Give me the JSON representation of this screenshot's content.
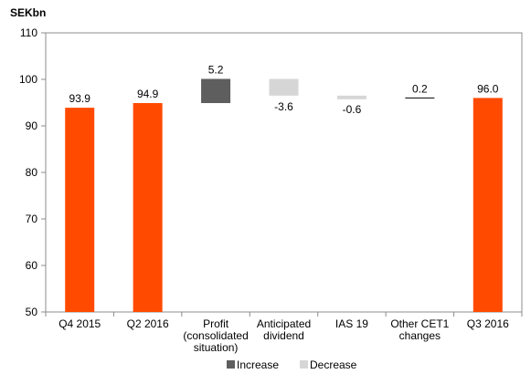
{
  "chart_data": {
    "type": "bar",
    "subtype": "waterfall",
    "unit_label": "SEKbn",
    "categories": [
      "Q4 2015",
      "Q2 2016",
      "Profit (consolidated situation)",
      "Anticipated dividend",
      "IAS 19",
      "Other CET1 changes",
      "Q3 2016"
    ],
    "category_lines": [
      [
        "Q4 2015"
      ],
      [
        "Q2 2016"
      ],
      [
        "Profit",
        "(consolidated",
        "situation)"
      ],
      [
        "Anticipated",
        "dividend"
      ],
      [
        "IAS 19"
      ],
      [
        "Other CET1",
        "changes"
      ],
      [
        "Q3 2016"
      ]
    ],
    "bars": [
      {
        "kind": "total",
        "start": 50,
        "end": 93.9,
        "label": "93.9"
      },
      {
        "kind": "total",
        "start": 50,
        "end": 94.9,
        "label": "94.9"
      },
      {
        "kind": "increase",
        "start": 94.9,
        "end": 100.1,
        "label": "5.2"
      },
      {
        "kind": "decrease",
        "start": 100.1,
        "end": 96.5,
        "label": "-3.6"
      },
      {
        "kind": "decrease",
        "start": 96.5,
        "end": 95.9,
        "label": "-0.6"
      },
      {
        "kind": "increase",
        "start": 95.9,
        "end": 96.0,
        "label": "0.2"
      },
      {
        "kind": "total",
        "start": 50,
        "end": 96.0,
        "label": "96.0"
      }
    ],
    "ylim": [
      50,
      110
    ],
    "yticks": [
      50,
      60,
      70,
      80,
      90,
      100,
      110
    ],
    "grid": false,
    "legend": {
      "position": "bottom-center",
      "items": [
        {
          "name": "Increase",
          "kind": "increase"
        },
        {
          "name": "Decrease",
          "kind": "decrease"
        }
      ]
    },
    "colors": {
      "total": "#ff4a00",
      "increase": "#5e5e5e",
      "decrease": "#d6d6d6"
    }
  }
}
